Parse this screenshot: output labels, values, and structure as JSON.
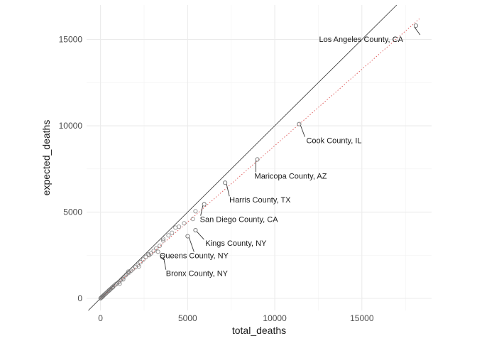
{
  "chart_data": {
    "type": "scatter",
    "xlabel": "total_deaths",
    "ylabel": "expected_deaths",
    "xlim": [
      -800,
      19000
    ],
    "ylim": [
      -700,
      17000
    ],
    "x_ticks": [
      0,
      5000,
      10000,
      15000
    ],
    "y_ticks": [
      0,
      5000,
      10000,
      15000
    ],
    "grid": true,
    "reference_lines": [
      {
        "style": "solid",
        "color": "#333333",
        "slope": 1.0,
        "intercept": 0
      },
      {
        "style": "dotted",
        "color": "#e06060",
        "slope": 0.885,
        "intercept": 0
      }
    ],
    "labeled_points": [
      {
        "name": "Los Angeles County, CA",
        "x": 18100,
        "y": 15800
      },
      {
        "name": "Cook County, IL",
        "x": 11400,
        "y": 10100
      },
      {
        "name": "Maricopa County, AZ",
        "x": 9000,
        "y": 8050
      },
      {
        "name": "Harris County, TX",
        "x": 7150,
        "y": 6700
      },
      {
        "name": "San Diego County, CA",
        "x": 5950,
        "y": 5450
      },
      {
        "name": "Kings County, NY",
        "x": 5450,
        "y": 3950
      },
      {
        "name": "Queens County, NY",
        "x": 5000,
        "y": 3600
      },
      {
        "name": "Bronx County, NY",
        "x": 3550,
        "y": 2400
      }
    ],
    "points": [
      {
        "x": 0,
        "y": 0
      },
      {
        "x": 30,
        "y": 30
      },
      {
        "x": 60,
        "y": 60
      },
      {
        "x": 90,
        "y": 90
      },
      {
        "x": 120,
        "y": 110
      },
      {
        "x": 150,
        "y": 145
      },
      {
        "x": 190,
        "y": 185
      },
      {
        "x": 230,
        "y": 220
      },
      {
        "x": 270,
        "y": 260
      },
      {
        "x": 320,
        "y": 300
      },
      {
        "x": 370,
        "y": 350
      },
      {
        "x": 420,
        "y": 400
      },
      {
        "x": 480,
        "y": 450
      },
      {
        "x": 540,
        "y": 510
      },
      {
        "x": 600,
        "y": 560
      },
      {
        "x": 660,
        "y": 620
      },
      {
        "x": 720,
        "y": 680
      },
      {
        "x": 800,
        "y": 750
      },
      {
        "x": 880,
        "y": 820
      },
      {
        "x": 960,
        "y": 880
      },
      {
        "x": 1050,
        "y": 950
      },
      {
        "x": 1150,
        "y": 1050
      },
      {
        "x": 1250,
        "y": 1150
      },
      {
        "x": 1350,
        "y": 1250
      },
      {
        "x": 1450,
        "y": 1350
      },
      {
        "x": 1550,
        "y": 1450
      },
      {
        "x": 1650,
        "y": 1500
      },
      {
        "x": 1750,
        "y": 1600
      },
      {
        "x": 1850,
        "y": 1700
      },
      {
        "x": 2000,
        "y": 1800
      },
      {
        "x": 2150,
        "y": 1950
      },
      {
        "x": 2300,
        "y": 2100
      },
      {
        "x": 2450,
        "y": 2250
      },
      {
        "x": 2600,
        "y": 2400
      },
      {
        "x": 2750,
        "y": 2550
      },
      {
        "x": 2900,
        "y": 2600
      },
      {
        "x": 3050,
        "y": 2750
      },
      {
        "x": 3200,
        "y": 2900
      },
      {
        "x": 3400,
        "y": 3050
      },
      {
        "x": 3600,
        "y": 3350
      },
      {
        "x": 3600,
        "y": 3450
      },
      {
        "x": 3900,
        "y": 3650
      },
      {
        "x": 4100,
        "y": 3800
      },
      {
        "x": 4300,
        "y": 4100
      },
      {
        "x": 4500,
        "y": 4150
      },
      {
        "x": 4800,
        "y": 4350
      },
      {
        "x": 5450,
        "y": 5050
      },
      {
        "x": 5300,
        "y": 4600
      },
      {
        "x": 1100,
        "y": 850
      },
      {
        "x": 1300,
        "y": 1100
      },
      {
        "x": 2200,
        "y": 1850
      },
      {
        "x": 2800,
        "y": 2500
      },
      {
        "x": 3300,
        "y": 2700
      },
      {
        "x": 700,
        "y": 640
      },
      {
        "x": 500,
        "y": 470
      },
      {
        "x": 1600,
        "y": 1550
      }
    ]
  }
}
